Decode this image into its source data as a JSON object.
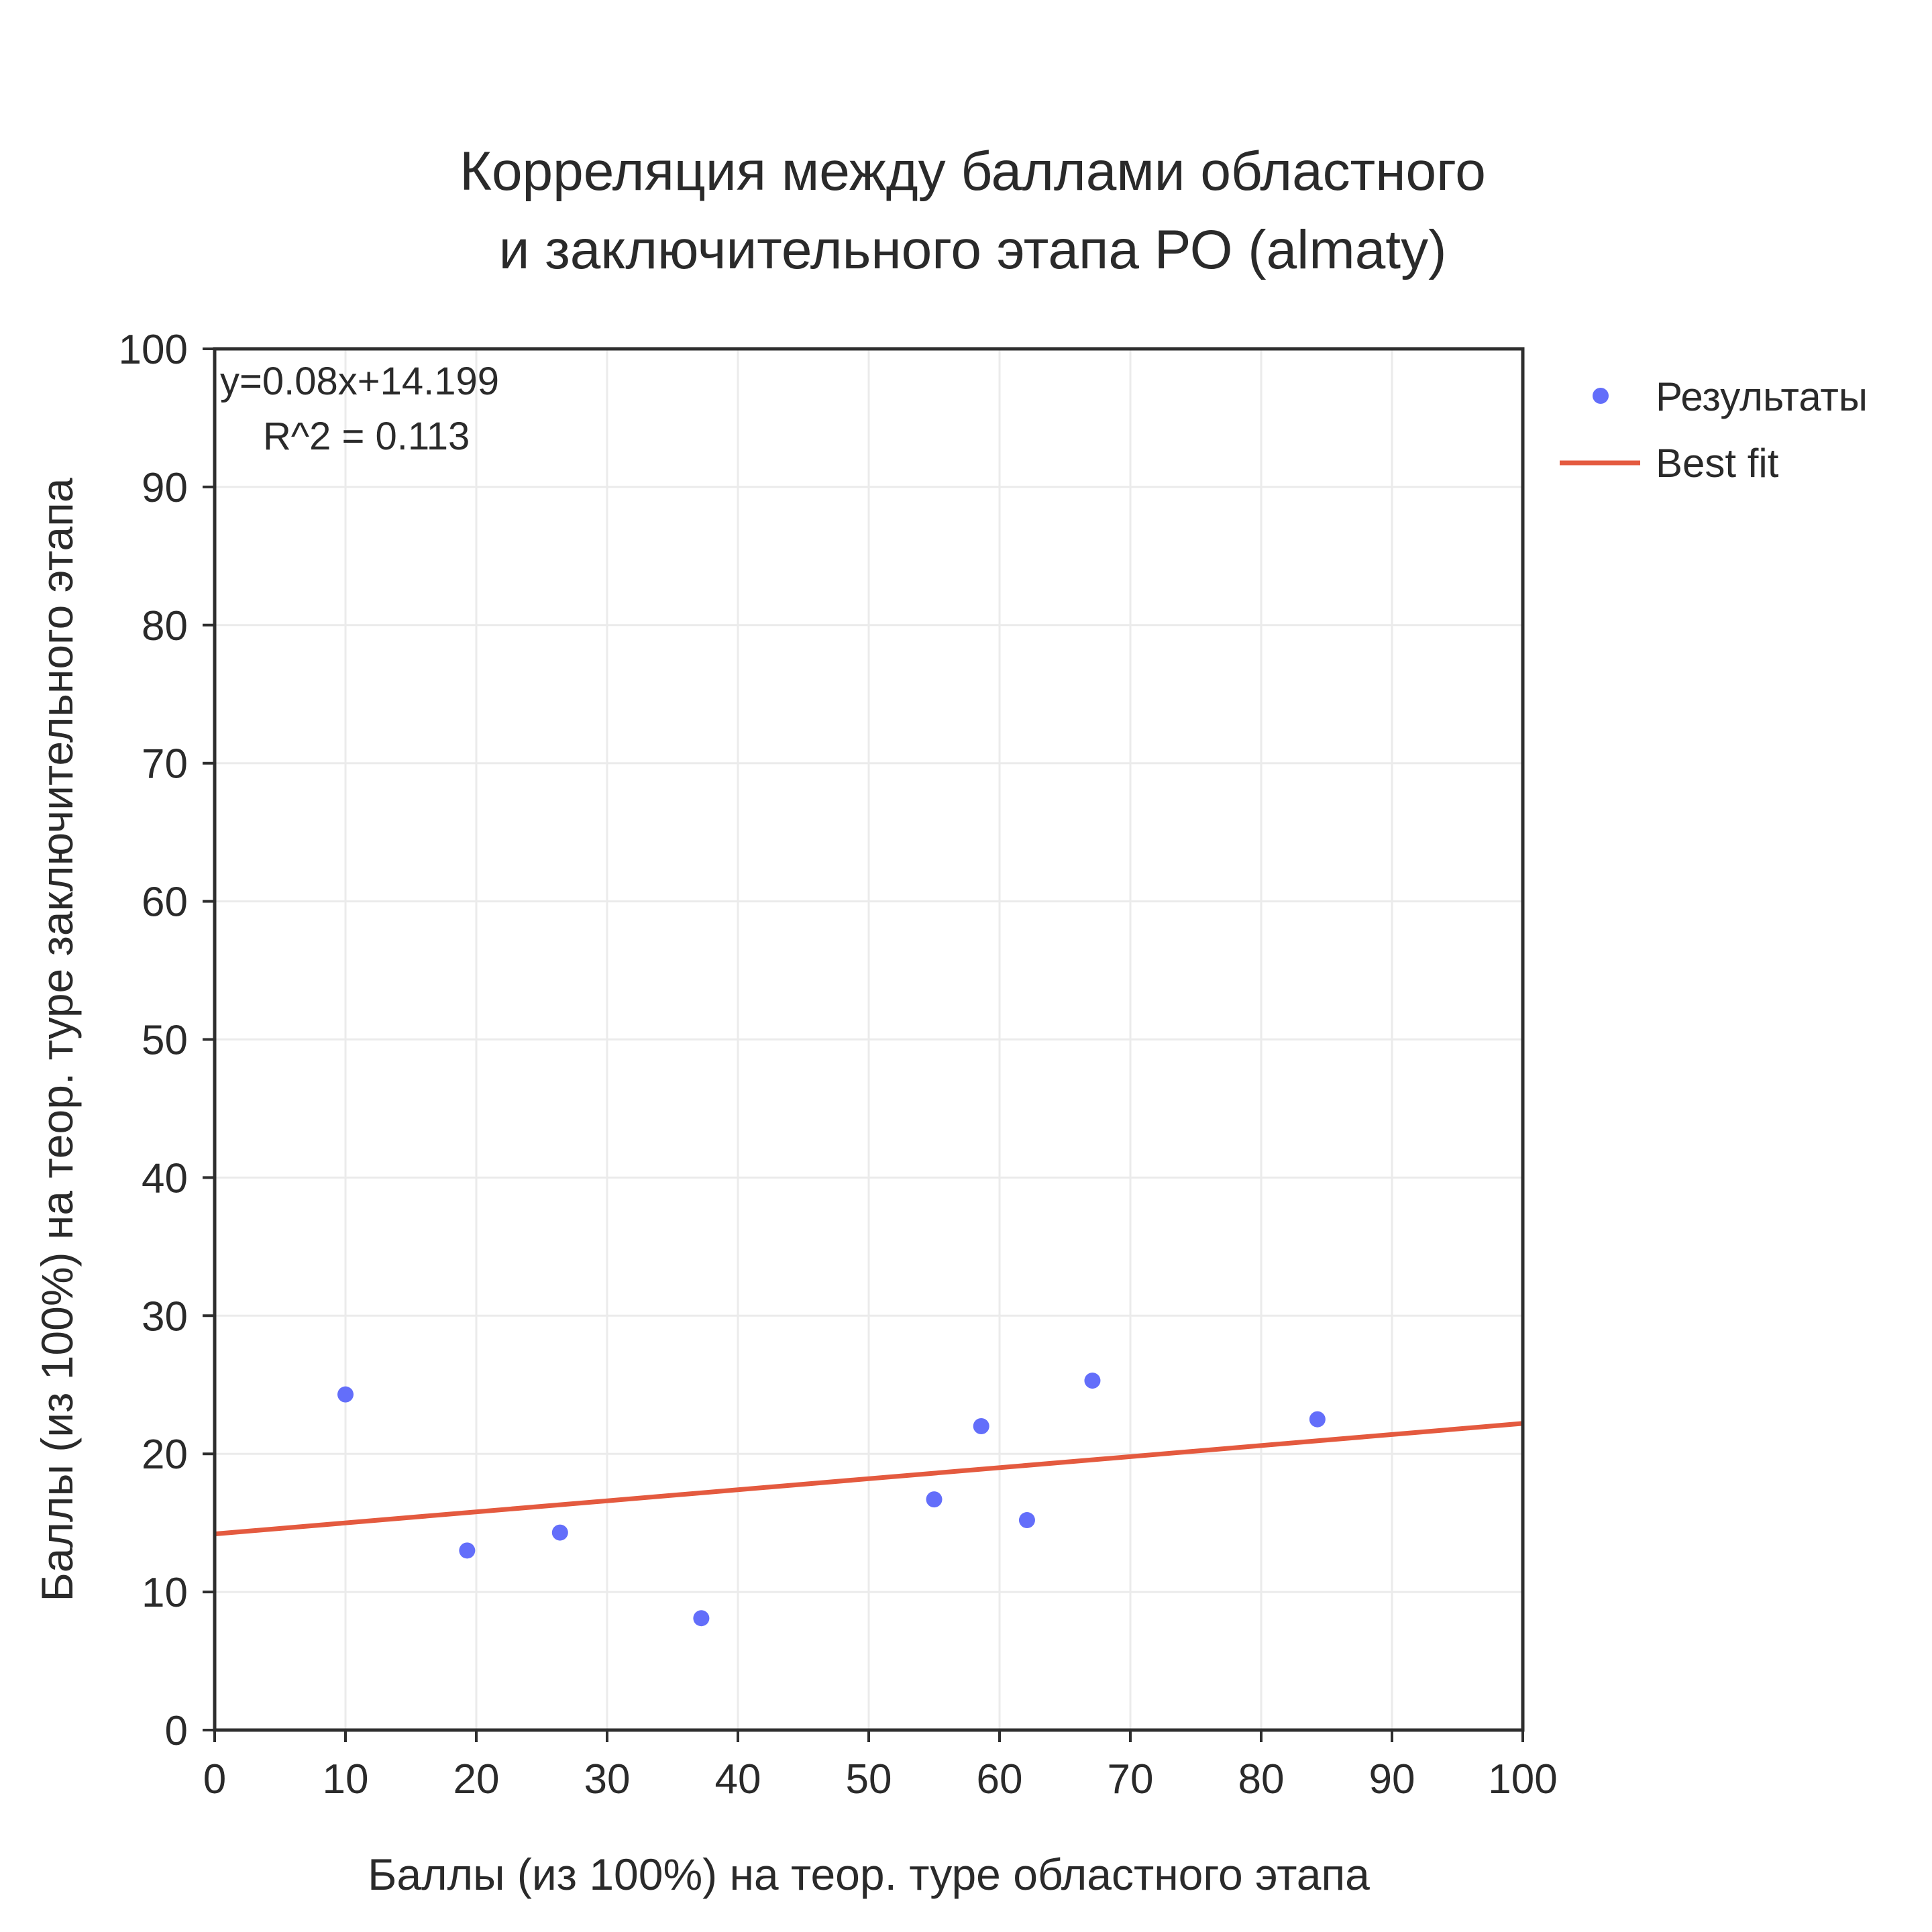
{
  "chart_data": {
    "type": "scatter",
    "title_lines": [
      "Корреляция между баллами областного",
      "и заключительного этапа РО (almaty)"
    ],
    "xlabel": "Баллы (из 100%) на теор. туре областного этапа",
    "ylabel": "Баллы (из 100%) на теор. туре заключительного этапа",
    "xlim": [
      0,
      100
    ],
    "ylim": [
      0,
      100
    ],
    "xticks": [
      0,
      10,
      20,
      30,
      40,
      50,
      60,
      70,
      80,
      90,
      100
    ],
    "yticks": [
      0,
      10,
      20,
      30,
      40,
      50,
      60,
      70,
      80,
      90,
      100
    ],
    "grid": true,
    "legend_position": "right",
    "series": [
      {
        "name": "Результаты",
        "kind": "markers",
        "color": "#636efa",
        "x": [
          10.0,
          19.3,
          26.4,
          37.2,
          55.0,
          58.6,
          62.1,
          67.1,
          84.3
        ],
        "y": [
          24.3,
          13.0,
          14.3,
          8.1,
          16.7,
          22.0,
          15.2,
          25.3,
          22.5
        ]
      },
      {
        "name": "Best fit",
        "kind": "line",
        "color": "#e45a3f",
        "slope": 0.08,
        "intercept": 14.199,
        "x": [
          0,
          100
        ],
        "y": [
          14.199,
          22.199
        ]
      }
    ],
    "annotation": {
      "equation": "y=0.08x+14.199",
      "r2": "R^2 = 0.113"
    }
  }
}
